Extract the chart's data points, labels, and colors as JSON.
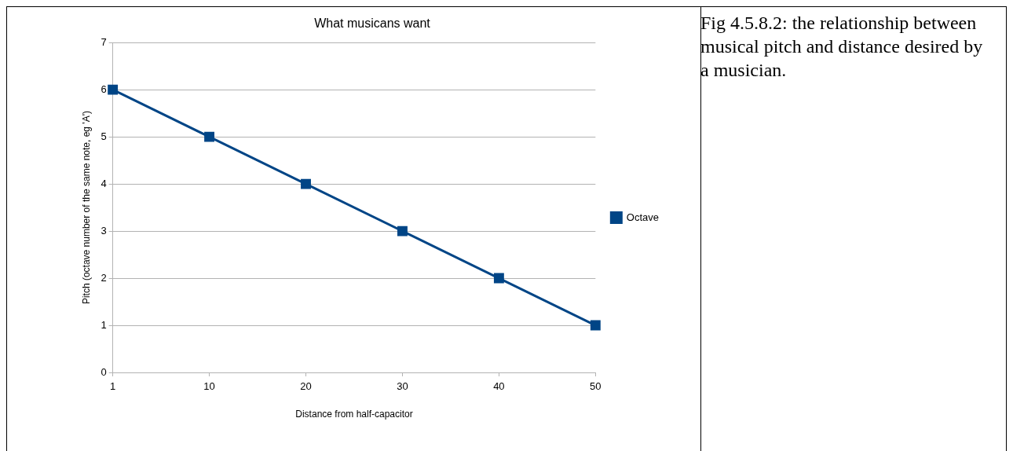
{
  "chart_data": {
    "type": "line",
    "title": "What musicans want",
    "xlabel": "Distance from half-capacitor",
    "ylabel": "Pitch (octave number of the same note, eg 'A')",
    "categories": [
      "1",
      "10",
      "20",
      "30",
      "40",
      "50"
    ],
    "series": [
      {
        "name": "Octave",
        "color": "#004586",
        "values": [
          6,
          5,
          4,
          3,
          2,
          1
        ]
      }
    ],
    "ylim": [
      0,
      7
    ],
    "yticks": [
      0,
      1,
      2,
      3,
      4,
      5,
      6,
      7
    ],
    "grid": "y",
    "legend": "right",
    "marker": "square",
    "annotations": [
      "Fig 4.5.8.2: the relationship between musical pitch and distance desired by a musician."
    ]
  }
}
